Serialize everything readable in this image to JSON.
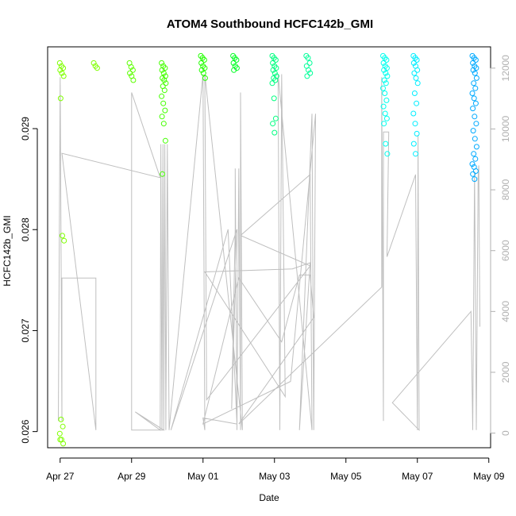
{
  "chart_data": {
    "type": "scatter",
    "title": "ATOM4 Southbound HCFC142b_GMI",
    "xlabel": "Date",
    "ylabel": "HCFC142b_GMI",
    "x_ticks": [
      "Apr 27",
      "Apr 29",
      "May 01",
      "May 03",
      "May 05",
      "May 07",
      "May 09"
    ],
    "x_range_days": [
      -0.35,
      12.05
    ],
    "ylim": [
      0.02584,
      0.02981
    ],
    "y_ticks": [
      0.026,
      0.027,
      0.028,
      0.029
    ],
    "y_tick_labels": [
      "0.026",
      "0.027",
      "0.028",
      "0.029"
    ],
    "y2lim": [
      -480,
      12700
    ],
    "y2_ticks": [
      0,
      2000,
      4000,
      6000,
      8000,
      10000,
      12000
    ],
    "y2_tick_labels": [
      "0",
      "2000",
      "4000",
      "6000",
      "8000",
      "10000",
      "12000"
    ],
    "y2_color": "#b0b0b0",
    "line_color": "#bfbfbf",
    "scatter_clusters": [
      {
        "day": 0.05,
        "color": "#7fff00",
        "values": [
          0.02965,
          0.02962,
          0.0296,
          0.02958,
          0.02955,
          0.02952,
          0.0293,
          0.02794,
          0.02789,
          0.02612,
          0.02605,
          0.02598,
          0.02592,
          0.02588,
          0.02592
        ]
      },
      {
        "day": 1.0,
        "color": "#7fff00",
        "values": [
          0.02965,
          0.02962,
          0.0296
        ]
      },
      {
        "day": 2.0,
        "color": "#5cff00",
        "values": [
          0.02965,
          0.02961,
          0.02958,
          0.02955,
          0.02952,
          0.02948
        ]
      },
      {
        "day": 2.9,
        "color": "#44ff00",
        "values": [
          0.02965,
          0.02962,
          0.0296,
          0.02958,
          0.02955,
          0.02952,
          0.0295,
          0.02948,
          0.02945,
          0.02942,
          0.02938,
          0.02932,
          0.02925,
          0.02918,
          0.02912,
          0.02905,
          0.02888,
          0.02855
        ]
      },
      {
        "day": 4.0,
        "color": "#22ff00",
        "values": [
          0.02972,
          0.0297,
          0.02968,
          0.02965,
          0.02962,
          0.0296,
          0.02958,
          0.02955,
          0.0295
        ]
      },
      {
        "day": 4.9,
        "color": "#00ff22",
        "values": [
          0.02972,
          0.0297,
          0.02968,
          0.02965,
          0.02962,
          0.0296,
          0.02958
        ]
      },
      {
        "day": 6.0,
        "color": "#00ff80",
        "values": [
          0.02972,
          0.0297,
          0.02968,
          0.02965,
          0.02962,
          0.0296,
          0.02958,
          0.02955,
          0.02952,
          0.0295,
          0.02948,
          0.02945,
          0.0293,
          0.0291,
          0.02905,
          0.02896
        ]
      },
      {
        "day": 6.95,
        "color": "#00ff99",
        "values": [
          0.02972,
          0.0297,
          0.02965,
          0.02962,
          0.02958,
          0.02955,
          0.02952
        ]
      },
      {
        "day": 9.1,
        "color": "#00ffee",
        "values": [
          0.02972,
          0.0297,
          0.02968,
          0.02965,
          0.02962,
          0.0296,
          0.02958,
          0.02955,
          0.02952,
          0.02948,
          0.02945,
          0.0294,
          0.02935,
          0.02928,
          0.02922,
          0.02915,
          0.0291,
          0.02905,
          0.02885,
          0.02875
        ]
      },
      {
        "day": 9.95,
        "color": "#00eeff",
        "values": [
          0.02972,
          0.0297,
          0.02968,
          0.02965,
          0.02962,
          0.02958,
          0.02955,
          0.0295,
          0.02945,
          0.02935,
          0.02925,
          0.02915,
          0.02905,
          0.02895,
          0.02885,
          0.02875
        ]
      },
      {
        "day": 11.6,
        "color": "#00aaff",
        "values": [
          0.02972,
          0.0297,
          0.02968,
          0.02965,
          0.02962,
          0.0296,
          0.02958,
          0.02955,
          0.0295,
          0.02945,
          0.0294,
          0.02935,
          0.0293,
          0.02925,
          0.0292,
          0.02912,
          0.02905,
          0.02898,
          0.0289,
          0.02882,
          0.02875,
          0.0287,
          0.02865,
          0.02862,
          0.02858,
          0.02855,
          0.0285
        ]
      }
    ],
    "altitude_track": [
      [
        -0.05,
        400
      ],
      [
        0.0,
        11700
      ],
      [
        0.05,
        400
      ],
      [
        0.05,
        5100
      ],
      [
        1.0,
        5100
      ],
      [
        1.0,
        100
      ],
      [
        0.05,
        9200
      ],
      [
        2.8,
        8400
      ],
      [
        2.0,
        11200
      ],
      [
        2.0,
        100
      ],
      [
        2.9,
        100
      ],
      [
        2.1,
        700
      ],
      [
        2.8,
        100
      ],
      [
        2.82,
        9500
      ],
      [
        2.85,
        100
      ],
      [
        2.88,
        9500
      ],
      [
        2.9,
        100
      ],
      [
        2.93,
        9500
      ],
      [
        2.96,
        100
      ],
      [
        3.0,
        9500
      ],
      [
        3.05,
        100
      ],
      [
        4.0,
        11800
      ],
      [
        4.05,
        100
      ],
      [
        4.0,
        500
      ],
      [
        4.95,
        300
      ],
      [
        4.7,
        6700
      ],
      [
        3.1,
        100
      ],
      [
        4.95,
        6700
      ],
      [
        4.8,
        800
      ],
      [
        4.9,
        6700
      ],
      [
        4.9,
        8700
      ],
      [
        4.95,
        100
      ],
      [
        5.0,
        8700
      ],
      [
        5.05,
        100
      ],
      [
        5.05,
        11200
      ],
      [
        5.1,
        100
      ],
      [
        4.05,
        11800
      ],
      [
        4.1,
        1100
      ],
      [
        7.0,
        5500
      ],
      [
        5.05,
        6500
      ],
      [
        7.0,
        8500
      ],
      [
        7.05,
        100
      ],
      [
        6.1,
        11800
      ],
      [
        6.15,
        100
      ],
      [
        6.2,
        11800
      ],
      [
        6.3,
        1200
      ],
      [
        4.05,
        5300
      ],
      [
        6.5,
        5400
      ],
      [
        7.0,
        5600
      ],
      [
        6.7,
        100
      ],
      [
        7.05,
        10500
      ],
      [
        7.1,
        100
      ],
      [
        7.15,
        10500
      ],
      [
        6.45,
        1700
      ],
      [
        4.0,
        300
      ],
      [
        5.0,
        5100
      ],
      [
        6.2,
        3000
      ],
      [
        6.7,
        5200
      ],
      [
        7.0,
        5200
      ],
      [
        7.1,
        3800
      ],
      [
        5.0,
        300
      ],
      [
        9.0,
        4800
      ],
      [
        9.0,
        11700
      ],
      [
        9.05,
        400
      ],
      [
        9.05,
        9900
      ],
      [
        9.2,
        9900
      ],
      [
        9.15,
        5800
      ],
      [
        9.95,
        8500
      ],
      [
        10.0,
        100
      ],
      [
        10.02,
        9800
      ],
      [
        10.05,
        100
      ],
      [
        9.3,
        1000
      ],
      [
        11.5,
        4000
      ],
      [
        11.55,
        100
      ],
      [
        11.6,
        8600
      ],
      [
        11.65,
        100
      ],
      [
        11.7,
        8400
      ],
      [
        11.72,
        8800
      ],
      [
        11.75,
        3500
      ]
    ]
  }
}
